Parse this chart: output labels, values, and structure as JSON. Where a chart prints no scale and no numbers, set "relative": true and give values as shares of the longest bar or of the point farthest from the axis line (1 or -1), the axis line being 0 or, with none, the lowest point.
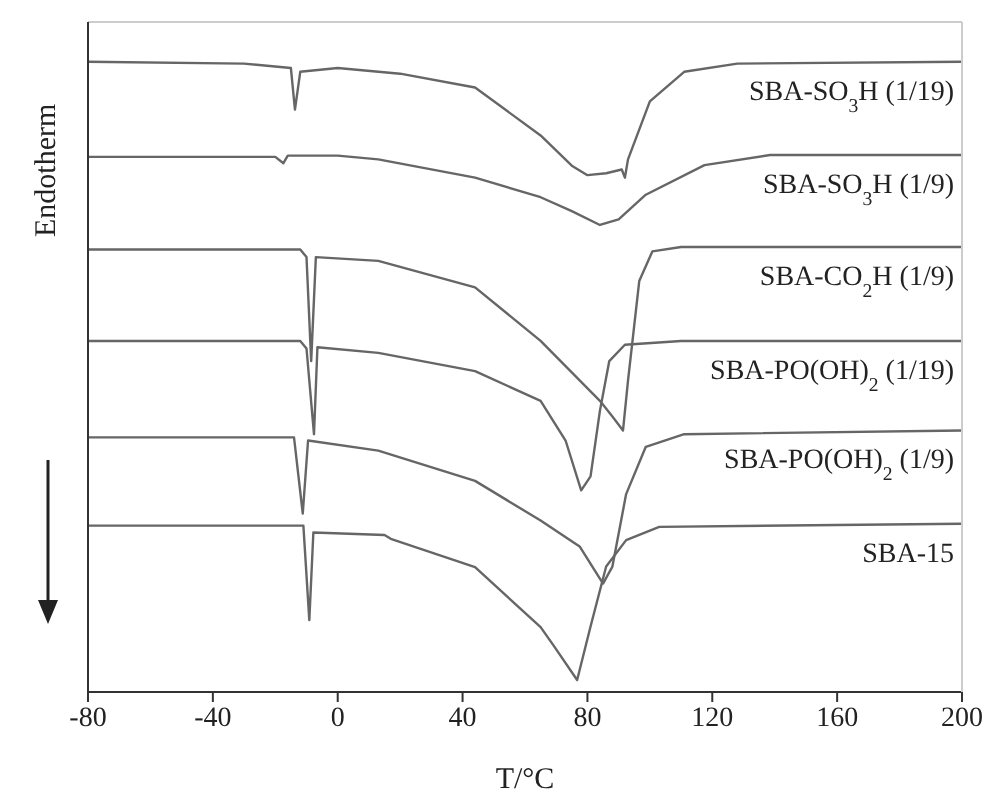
{
  "chart_data": {
    "type": "line",
    "relative": true,
    "xlabel": "T/°C",
    "ylabel": "Endotherm",
    "xlim": [
      -80,
      200
    ],
    "xticks": [
      -80,
      -40,
      0,
      40,
      80,
      120,
      160,
      200
    ],
    "tick_labels": "x",
    "series": [
      {
        "name": "SBA-SO$_{3}$H (1/19)",
        "color": "#666666",
        "x": [
          -80,
          -30,
          -15,
          -13.7,
          -12,
          0,
          20,
          44,
          65,
          75,
          80,
          86,
          91,
          92,
          93,
          100,
          111,
          128,
          200
        ],
        "values": [
          1.0,
          0.997,
          0.99,
          0.924,
          0.984,
          0.99,
          0.981,
          0.959,
          0.883,
          0.835,
          0.82,
          0.823,
          0.829,
          0.816,
          0.845,
          0.937,
          0.984,
          0.997,
          1.0
        ]
      },
      {
        "name": "SBA-SO$_{3}$H (1/9)",
        "color": "#666666",
        "x": [
          -80,
          -20,
          -17.4,
          -16,
          0,
          13,
          44,
          65,
          75,
          84,
          90,
          98.7,
          117.5,
          138.5,
          200
        ],
        "values": [
          0.849,
          0.849,
          0.839,
          0.851,
          0.851,
          0.845,
          0.816,
          0.785,
          0.763,
          0.741,
          0.75,
          0.789,
          0.836,
          0.852,
          0.852
        ]
      },
      {
        "name": "SBA-CO$_{2}$H (1/9)",
        "color": "#666666",
        "x": [
          -80,
          -12,
          -10,
          -8.5,
          -7,
          13,
          44,
          65,
          84,
          88,
          91.4,
          93,
          96.6,
          100.8,
          110,
          200
        ],
        "values": [
          0.702,
          0.702,
          0.69,
          0.525,
          0.69,
          0.684,
          0.642,
          0.557,
          0.462,
          0.437,
          0.415,
          0.494,
          0.652,
          0.699,
          0.706,
          0.706
        ]
      },
      {
        "name": "SBA-PO(OH)$_{2}$ (1/19)",
        "color": "#666666",
        "x": [
          -80,
          -12,
          -10,
          -7.6,
          -6.5,
          13,
          44,
          65,
          73,
          78,
          81,
          84,
          87,
          92,
          110,
          200
        ],
        "values": [
          0.557,
          0.557,
          0.545,
          0.409,
          0.547,
          0.538,
          0.509,
          0.462,
          0.399,
          0.32,
          0.342,
          0.446,
          0.525,
          0.551,
          0.557,
          0.557
        ]
      },
      {
        "name": "SBA-PO(OH)$_{2}$ (1/9)",
        "color": "#666666",
        "x": [
          -80,
          -14,
          -11.2,
          -9.5,
          13,
          44,
          65,
          77.5,
          85,
          88,
          92.4,
          98.7,
          111,
          200
        ],
        "values": [
          0.404,
          0.404,
          0.283,
          0.399,
          0.383,
          0.335,
          0.272,
          0.231,
          0.172,
          0.199,
          0.314,
          0.389,
          0.409,
          0.415
        ]
      },
      {
        "name": "SBA-15",
        "color": "#666666",
        "x": [
          -80,
          -11,
          -9.1,
          -7.8,
          15,
          17,
          44,
          65,
          69.4,
          76.7,
          81,
          86,
          92.4,
          103,
          200
        ],
        "values": [
          0.264,
          0.264,
          0.114,
          0.253,
          0.249,
          0.243,
          0.198,
          0.103,
          0.072,
          0.019,
          0.104,
          0.199,
          0.241,
          0.262,
          0.267
        ]
      }
    ]
  }
}
